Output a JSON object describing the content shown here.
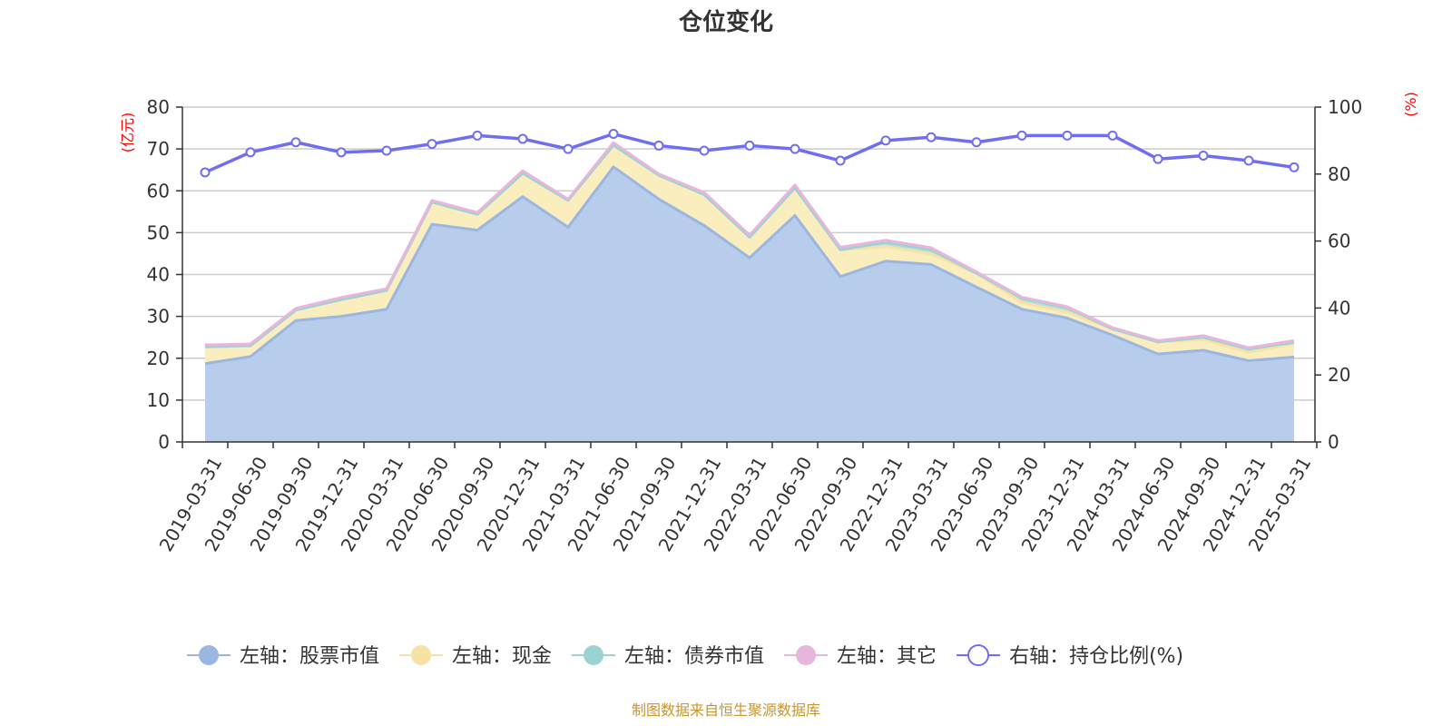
{
  "chart_data": {
    "type": "area",
    "title": "仓位变化",
    "source_note": "制图数据来自恒生聚源数据库",
    "left_axis_unit": "(亿元)",
    "right_axis_unit": "(%)",
    "left_axis": {
      "min": 0,
      "max": 80,
      "ticks": [
        0,
        10,
        20,
        30,
        40,
        50,
        60,
        70,
        80
      ]
    },
    "right_axis": {
      "min": 0,
      "max": 100,
      "ticks": [
        0,
        20,
        40,
        60,
        80,
        100
      ]
    },
    "grid": true,
    "legend_position": "bottom",
    "x": [
      "2019-03-31",
      "2019-06-30",
      "2019-09-30",
      "2019-12-31",
      "2020-03-31",
      "2020-06-30",
      "2020-09-30",
      "2020-12-31",
      "2021-03-31",
      "2021-06-30",
      "2021-09-30",
      "2021-12-31",
      "2022-03-31",
      "2022-06-30",
      "2022-09-30",
      "2022-12-31",
      "2023-03-31",
      "2023-06-30",
      "2023-09-30",
      "2023-12-31",
      "2024-03-31",
      "2024-06-30",
      "2024-09-30",
      "2024-12-31",
      "2025-03-31"
    ],
    "series": [
      {
        "name": "左轴：股票市值",
        "axis": "left",
        "kind": "stacked-area",
        "color": "#9ab6e1",
        "fill": "#b8cdeb",
        "values": [
          18.7,
          20.4,
          29.0,
          30.0,
          31.7,
          52.0,
          50.6,
          58.6,
          51.3,
          65.7,
          58.0,
          51.7,
          44.0,
          54.1,
          39.5,
          43.2,
          42.4,
          37.0,
          31.7,
          29.6,
          25.5,
          21.0,
          21.9,
          19.4,
          20.3
        ]
      },
      {
        "name": "左轴：现金",
        "axis": "left",
        "kind": "stacked-area",
        "color": "#f5e3a3",
        "fill": "#faedbe",
        "values": [
          4.0,
          2.6,
          2.5,
          4.0,
          4.5,
          5.3,
          3.8,
          5.6,
          6.4,
          5.2,
          5.7,
          7.4,
          4.9,
          6.6,
          6.4,
          3.5,
          2.5,
          3.3,
          1.6,
          1.4,
          1.5,
          2.9,
          2.6,
          2.0,
          3.2
        ]
      },
      {
        "name": "左轴：债券市值",
        "axis": "left",
        "kind": "stacked-area",
        "color": "#9bd3d3",
        "fill": "#b7e1de",
        "values": [
          0.0,
          0.0,
          0.0,
          0.0,
          0.0,
          0.0,
          0.0,
          0.0,
          0.0,
          0.0,
          0.0,
          0.0,
          0.0,
          0.0,
          0.0,
          1.0,
          1.0,
          0.0,
          1.0,
          1.0,
          0.0,
          0.0,
          0.5,
          0.8,
          0.3
        ]
      },
      {
        "name": "左轴：其它",
        "axis": "left",
        "kind": "stacked-area",
        "color": "#e8b6dc",
        "fill": "#efcbe6",
        "values": [
          0.5,
          0.4,
          0.4,
          0.5,
          0.4,
          0.4,
          0.4,
          0.6,
          0.3,
          0.6,
          0.3,
          0.5,
          0.5,
          0.7,
          0.6,
          0.5,
          0.5,
          0.3,
          0.3,
          0.3,
          0.3,
          0.3,
          0.4,
          0.3,
          0.4
        ]
      },
      {
        "name": "右轴：持仓比例(%)",
        "axis": "right",
        "kind": "line",
        "color": "#6f6ef0",
        "values": [
          80.5,
          86.5,
          89.5,
          86.5,
          87.0,
          89.0,
          91.5,
          90.5,
          87.5,
          92.0,
          88.5,
          87.0,
          88.5,
          87.5,
          84.0,
          90.0,
          91.0,
          89.5,
          91.5,
          91.5,
          91.5,
          84.5,
          85.5,
          84.0,
          82.0
        ]
      }
    ]
  }
}
